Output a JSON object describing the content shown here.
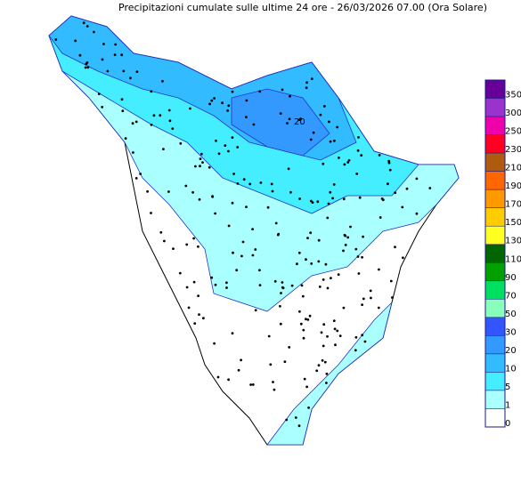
{
  "header": {
    "title": "Precipitazioni cumulate sulle ultime 24 ore - 26/03/2026 07.00 (Ora Solare)"
  },
  "map": {
    "labels": [
      "20"
    ]
  },
  "legend": {
    "items": [
      {
        "label": "350",
        "color": "#660099"
      },
      {
        "label": "300",
        "color": "#9933cc"
      },
      {
        "label": "250",
        "color": "#ee00aa"
      },
      {
        "label": "230",
        "color": "#ff0022"
      },
      {
        "label": "210",
        "color": "#b05a10"
      },
      {
        "label": "190",
        "color": "#ff6600"
      },
      {
        "label": "170",
        "color": "#ff9900"
      },
      {
        "label": "150",
        "color": "#ffcc00"
      },
      {
        "label": "130",
        "color": "#ffff22"
      },
      {
        "label": "110",
        "color": "#006600"
      },
      {
        "label": "90",
        "color": "#00a000"
      },
      {
        "label": "70",
        "color": "#00e060"
      },
      {
        "label": "50",
        "color": "#88ffbb"
      },
      {
        "label": "30",
        "color": "#3355ff"
      },
      {
        "label": "20",
        "color": "#3399ff"
      },
      {
        "label": "10",
        "color": "#33bbff"
      },
      {
        "label": "5",
        "color": "#44eeff"
      },
      {
        "label": "1",
        "color": "#aaffff"
      },
      {
        "label": "0",
        "color": "#ffffff"
      }
    ]
  }
}
